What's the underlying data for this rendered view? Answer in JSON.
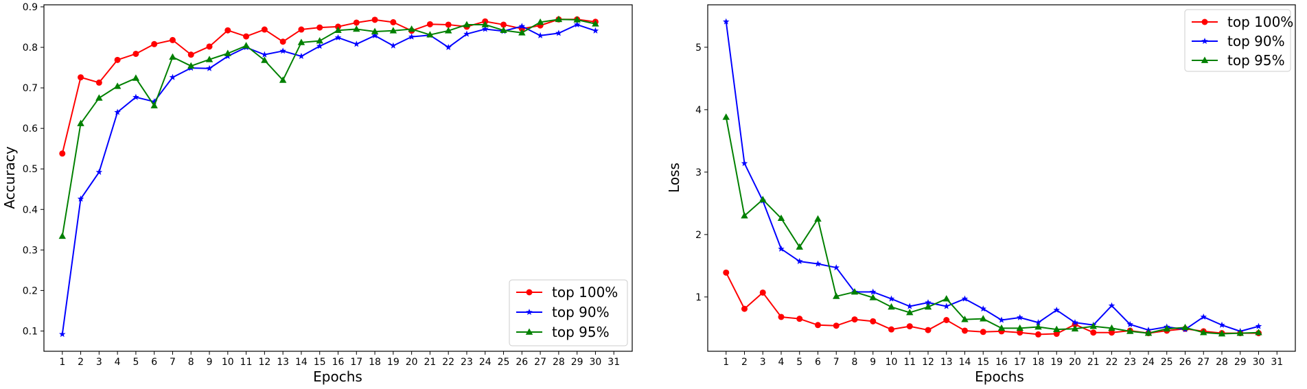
{
  "chart_data": [
    {
      "type": "line",
      "xlabel": "Epochs",
      "ylabel": "Accuracy",
      "x": [
        1,
        2,
        3,
        4,
        5,
        6,
        7,
        8,
        9,
        10,
        11,
        12,
        13,
        14,
        15,
        16,
        17,
        18,
        19,
        20,
        21,
        22,
        23,
        24,
        25,
        26,
        27,
        28,
        29,
        30
      ],
      "xticks": [
        1,
        2,
        3,
        4,
        5,
        6,
        7,
        8,
        9,
        10,
        11,
        12,
        13,
        14,
        15,
        16,
        17,
        18,
        19,
        20,
        21,
        22,
        23,
        24,
        25,
        26,
        27,
        28,
        29,
        30,
        31
      ],
      "xlim": [
        0,
        32
      ],
      "yticks": [
        0.1,
        0.2,
        0.3,
        0.4,
        0.5,
        0.6,
        0.7,
        0.8,
        0.9
      ],
      "ylim": [
        0.05,
        0.905
      ],
      "grid": false,
      "legend_position": "lower-right",
      "series": [
        {
          "name": "top 100%",
          "color": "#ff0000",
          "marker": "circle",
          "values": [
            0.538,
            0.726,
            0.713,
            0.769,
            0.784,
            0.808,
            0.818,
            0.782,
            0.802,
            0.842,
            0.827,
            0.844,
            0.814,
            0.844,
            0.849,
            0.851,
            0.861,
            0.868,
            0.862,
            0.841,
            0.857,
            0.856,
            0.851,
            0.864,
            0.856,
            0.846,
            0.854,
            0.869,
            0.869,
            0.863
          ]
        },
        {
          "name": "top 90%",
          "color": "#0000ff",
          "marker": "star",
          "values": [
            0.092,
            0.426,
            0.492,
            0.64,
            0.677,
            0.666,
            0.726,
            0.749,
            0.748,
            0.778,
            0.8,
            0.782,
            0.791,
            0.778,
            0.803,
            0.824,
            0.808,
            0.829,
            0.804,
            0.826,
            0.83,
            0.8,
            0.833,
            0.845,
            0.84,
            0.852,
            0.829,
            0.835,
            0.856,
            0.841
          ]
        },
        {
          "name": "top 95%",
          "color": "#008000",
          "marker": "triangle",
          "values": [
            0.334,
            0.612,
            0.675,
            0.704,
            0.724,
            0.656,
            0.776,
            0.754,
            0.77,
            0.785,
            0.804,
            0.768,
            0.719,
            0.812,
            0.816,
            0.842,
            0.845,
            0.839,
            0.841,
            0.845,
            0.831,
            0.841,
            0.856,
            0.856,
            0.842,
            0.836,
            0.862,
            0.869,
            0.868,
            0.858
          ]
        }
      ]
    },
    {
      "type": "line",
      "xlabel": "Epochs",
      "ylabel": "Loss",
      "x": [
        1,
        2,
        3,
        4,
        5,
        6,
        7,
        8,
        9,
        10,
        11,
        12,
        13,
        14,
        15,
        16,
        17,
        18,
        19,
        20,
        21,
        22,
        23,
        24,
        25,
        26,
        27,
        28,
        29,
        30
      ],
      "xticks": [
        1,
        2,
        3,
        4,
        5,
        6,
        7,
        8,
        9,
        10,
        11,
        12,
        13,
        14,
        15,
        16,
        17,
        18,
        19,
        20,
        21,
        22,
        23,
        24,
        25,
        26,
        27,
        28,
        29,
        30,
        31
      ],
      "xlim": [
        0,
        32
      ],
      "yticks": [
        1,
        2,
        3,
        4,
        5
      ],
      "ylim": [
        0.13,
        5.68
      ],
      "grid": false,
      "legend_position": "upper-right",
      "series": [
        {
          "name": "top 100%",
          "color": "#ff0000",
          "marker": "circle",
          "values": [
            1.39,
            0.81,
            1.07,
            0.68,
            0.65,
            0.55,
            0.54,
            0.64,
            0.61,
            0.48,
            0.53,
            0.47,
            0.63,
            0.46,
            0.44,
            0.45,
            0.43,
            0.4,
            0.41,
            0.56,
            0.43,
            0.43,
            0.46,
            0.42,
            0.46,
            0.49,
            0.45,
            0.42,
            0.42,
            0.42
          ]
        },
        {
          "name": "top 90%",
          "color": "#0000ff",
          "marker": "star",
          "values": [
            5.41,
            3.14,
            2.54,
            1.77,
            1.57,
            1.53,
            1.47,
            1.08,
            1.08,
            0.97,
            0.85,
            0.91,
            0.85,
            0.97,
            0.81,
            0.63,
            0.67,
            0.59,
            0.79,
            0.59,
            0.55,
            0.86,
            0.56,
            0.47,
            0.52,
            0.48,
            0.68,
            0.55,
            0.45,
            0.53
          ]
        },
        {
          "name": "top 95%",
          "color": "#008000",
          "marker": "triangle",
          "values": [
            3.88,
            2.3,
            2.56,
            2.26,
            1.8,
            2.25,
            1.01,
            1.08,
            0.99,
            0.84,
            0.75,
            0.84,
            0.97,
            0.64,
            0.65,
            0.5,
            0.5,
            0.52,
            0.48,
            0.49,
            0.53,
            0.5,
            0.45,
            0.42,
            0.49,
            0.51,
            0.43,
            0.41,
            0.42,
            0.43
          ]
        }
      ]
    }
  ]
}
